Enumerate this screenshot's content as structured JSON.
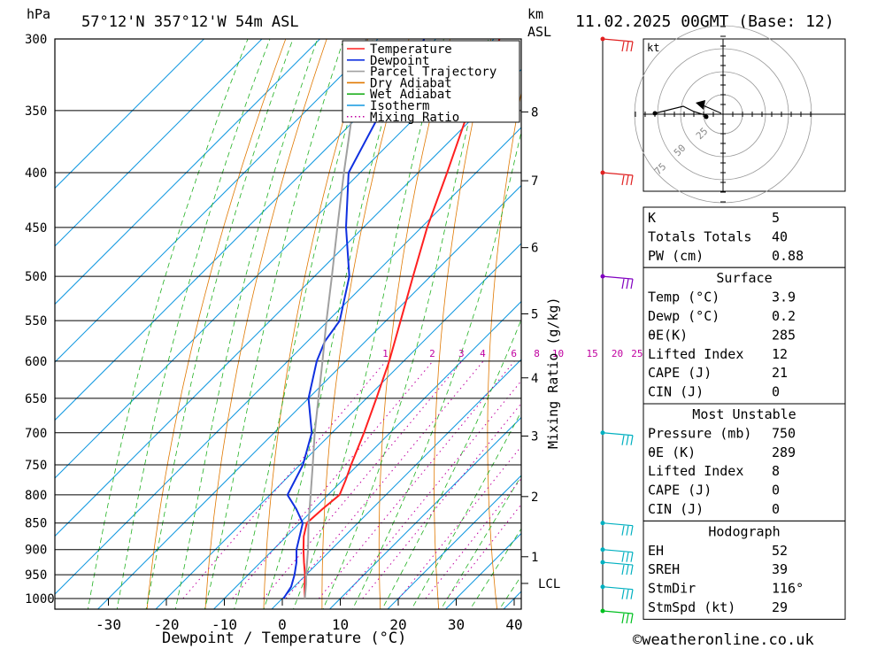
{
  "header": {
    "location": "57°12'N  357°12'W  54m  ASL",
    "datetime": "11.02.2025  00GMT  (Base: 12)",
    "hpa_label": "hPa",
    "km_label": "km",
    "asl_label": "ASL"
  },
  "chart_data": {
    "type": "line",
    "xlabel": "Dewpoint / Temperature (°C)",
    "ylabel_right": "Mixing Ratio (g/kg)",
    "x_ticks": [
      -30,
      -20,
      -10,
      0,
      10,
      20,
      30,
      40
    ],
    "y_ticks": [
      300,
      350,
      400,
      450,
      500,
      550,
      600,
      650,
      700,
      750,
      800,
      850,
      900,
      950,
      1000
    ],
    "xlim": [
      -40,
      40
    ],
    "ylim": [
      1000,
      300
    ],
    "y_scale": "log",
    "km_ticks": [
      {
        "km": "8",
        "p": 351
      },
      {
        "km": "7",
        "p": 407
      },
      {
        "km": "6",
        "p": 470
      },
      {
        "km": "5",
        "p": 542
      },
      {
        "km": "4",
        "p": 622
      },
      {
        "km": "3",
        "p": 705
      },
      {
        "km": "2",
        "p": 803
      },
      {
        "km": "1",
        "p": 914
      }
    ],
    "lcl_label": "LCL",
    "lcl_pressure": 968,
    "mixing_ratio_labels": [
      "1",
      "2",
      "3",
      "4",
      "6",
      "8",
      "10",
      "15",
      "20",
      "25"
    ],
    "mixing_ratio_values": [
      1,
      2,
      3,
      4,
      6,
      8,
      10,
      15,
      20,
      25
    ],
    "legend": {
      "placement": "top-right of plot",
      "entries": [
        {
          "name": "Temperature",
          "color": "#ff2020",
          "style": "solid"
        },
        {
          "name": "Dewpoint",
          "color": "#1030e0",
          "style": "solid"
        },
        {
          "name": "Parcel Trajectory",
          "color": "#a0a0a0",
          "style": "solid"
        },
        {
          "name": "Dry Adiabat",
          "color": "#e07800",
          "style": "solid"
        },
        {
          "name": "Wet Adiabat",
          "color": "#20b020",
          "style": "solid"
        },
        {
          "name": "Isotherm",
          "color": "#1098e0",
          "style": "solid"
        },
        {
          "name": "Mixing Ratio",
          "color": "#c000a0",
          "style": "dotted"
        }
      ]
    },
    "series": [
      {
        "name": "Temperature",
        "color": "#ff2020",
        "points": [
          [
            1000,
            3.9
          ],
          [
            975,
            1.8
          ],
          [
            950,
            -0.2
          ],
          [
            925,
            -2.5
          ],
          [
            900,
            -4.8
          ],
          [
            875,
            -7.0
          ],
          [
            850,
            -8.8
          ],
          [
            825,
            -8.5
          ],
          [
            800,
            -8.0
          ],
          [
            775,
            -9.5
          ],
          [
            750,
            -11.2
          ],
          [
            700,
            -14.5
          ],
          [
            650,
            -18.3
          ],
          [
            600,
            -22.5
          ],
          [
            550,
            -27.5
          ],
          [
            500,
            -33
          ],
          [
            450,
            -39
          ],
          [
            400,
            -45
          ],
          [
            350,
            -52
          ],
          [
            300,
            -59
          ]
        ]
      },
      {
        "name": "Dewpoint",
        "color": "#1030e0",
        "points": [
          [
            1000,
            0.2
          ],
          [
            975,
            -0.5
          ],
          [
            950,
            -2
          ],
          [
            925,
            -3.8
          ],
          [
            900,
            -6
          ],
          [
            850,
            -9.5
          ],
          [
            825,
            -13
          ],
          [
            800,
            -17
          ],
          [
            750,
            -19.5
          ],
          [
            700,
            -23.5
          ],
          [
            650,
            -30
          ],
          [
            600,
            -35
          ],
          [
            575,
            -37
          ],
          [
            550,
            -38
          ],
          [
            500,
            -44
          ],
          [
            450,
            -53
          ],
          [
            400,
            -62
          ],
          [
            350,
            -67
          ],
          [
            300,
            -72
          ]
        ]
      },
      {
        "name": "Parcel Trajectory",
        "color": "#a0a0a0",
        "points": [
          [
            1000,
            3.9
          ],
          [
            968,
            1.5
          ],
          [
            950,
            0
          ],
          [
            900,
            -4
          ],
          [
            850,
            -8.5
          ],
          [
            800,
            -13
          ],
          [
            750,
            -17.8
          ],
          [
            700,
            -23
          ],
          [
            650,
            -28.3
          ],
          [
            600,
            -34
          ],
          [
            550,
            -40.3
          ],
          [
            500,
            -47
          ],
          [
            450,
            -54.5
          ],
          [
            400,
            -62.8
          ],
          [
            350,
            -72
          ],
          [
            300,
            -82
          ]
        ]
      }
    ],
    "wind_barbs": [
      {
        "p": 300,
        "color": "#e02020"
      },
      {
        "p": 400,
        "color": "#e02020"
      },
      {
        "p": 500,
        "color": "#8000c0"
      },
      {
        "p": 700,
        "color": "#00b0c0"
      },
      {
        "p": 850,
        "color": "#00b0c0"
      },
      {
        "p": 900,
        "color": "#00b0c0"
      },
      {
        "p": 925,
        "color": "#00b0c0"
      },
      {
        "p": 975,
        "color": "#00b0c0"
      },
      {
        "p": 1000,
        "color": "#00c020"
      }
    ]
  },
  "hodograph": {
    "unit_label": "kt",
    "ring_labels": [
      "25",
      "50",
      "75"
    ]
  },
  "indices": {
    "top": [
      {
        "label": "K",
        "value": "5"
      },
      {
        "label": "Totals Totals",
        "value": "40"
      },
      {
        "label": "PW (cm)",
        "value": "0.88"
      }
    ],
    "surface": {
      "title": "Surface",
      "rows": [
        {
          "label": "Temp (°C)",
          "value": "3.9"
        },
        {
          "label": "Dewp (°C)",
          "value": "0.2"
        },
        {
          "label": "θE(K)",
          "value": "285"
        },
        {
          "label": "Lifted Index",
          "value": "12"
        },
        {
          "label": "CAPE (J)",
          "value": "21"
        },
        {
          "label": "CIN (J)",
          "value": "0"
        }
      ]
    },
    "most_unstable": {
      "title": "Most Unstable",
      "rows": [
        {
          "label": "Pressure (mb)",
          "value": "750"
        },
        {
          "label": "θE (K)",
          "value": "289"
        },
        {
          "label": "Lifted Index",
          "value": "8"
        },
        {
          "label": "CAPE (J)",
          "value": "0"
        },
        {
          "label": "CIN (J)",
          "value": "0"
        }
      ]
    },
    "hodograph_section": {
      "title": "Hodograph",
      "rows": [
        {
          "label": "EH",
          "value": "52"
        },
        {
          "label": "SREH",
          "value": "39"
        },
        {
          "label": "StmDir",
          "value": "116°"
        },
        {
          "label": "StmSpd (kt)",
          "value": "29"
        }
      ]
    }
  },
  "footer": {
    "copyright": "©weatheronline.co.uk"
  }
}
